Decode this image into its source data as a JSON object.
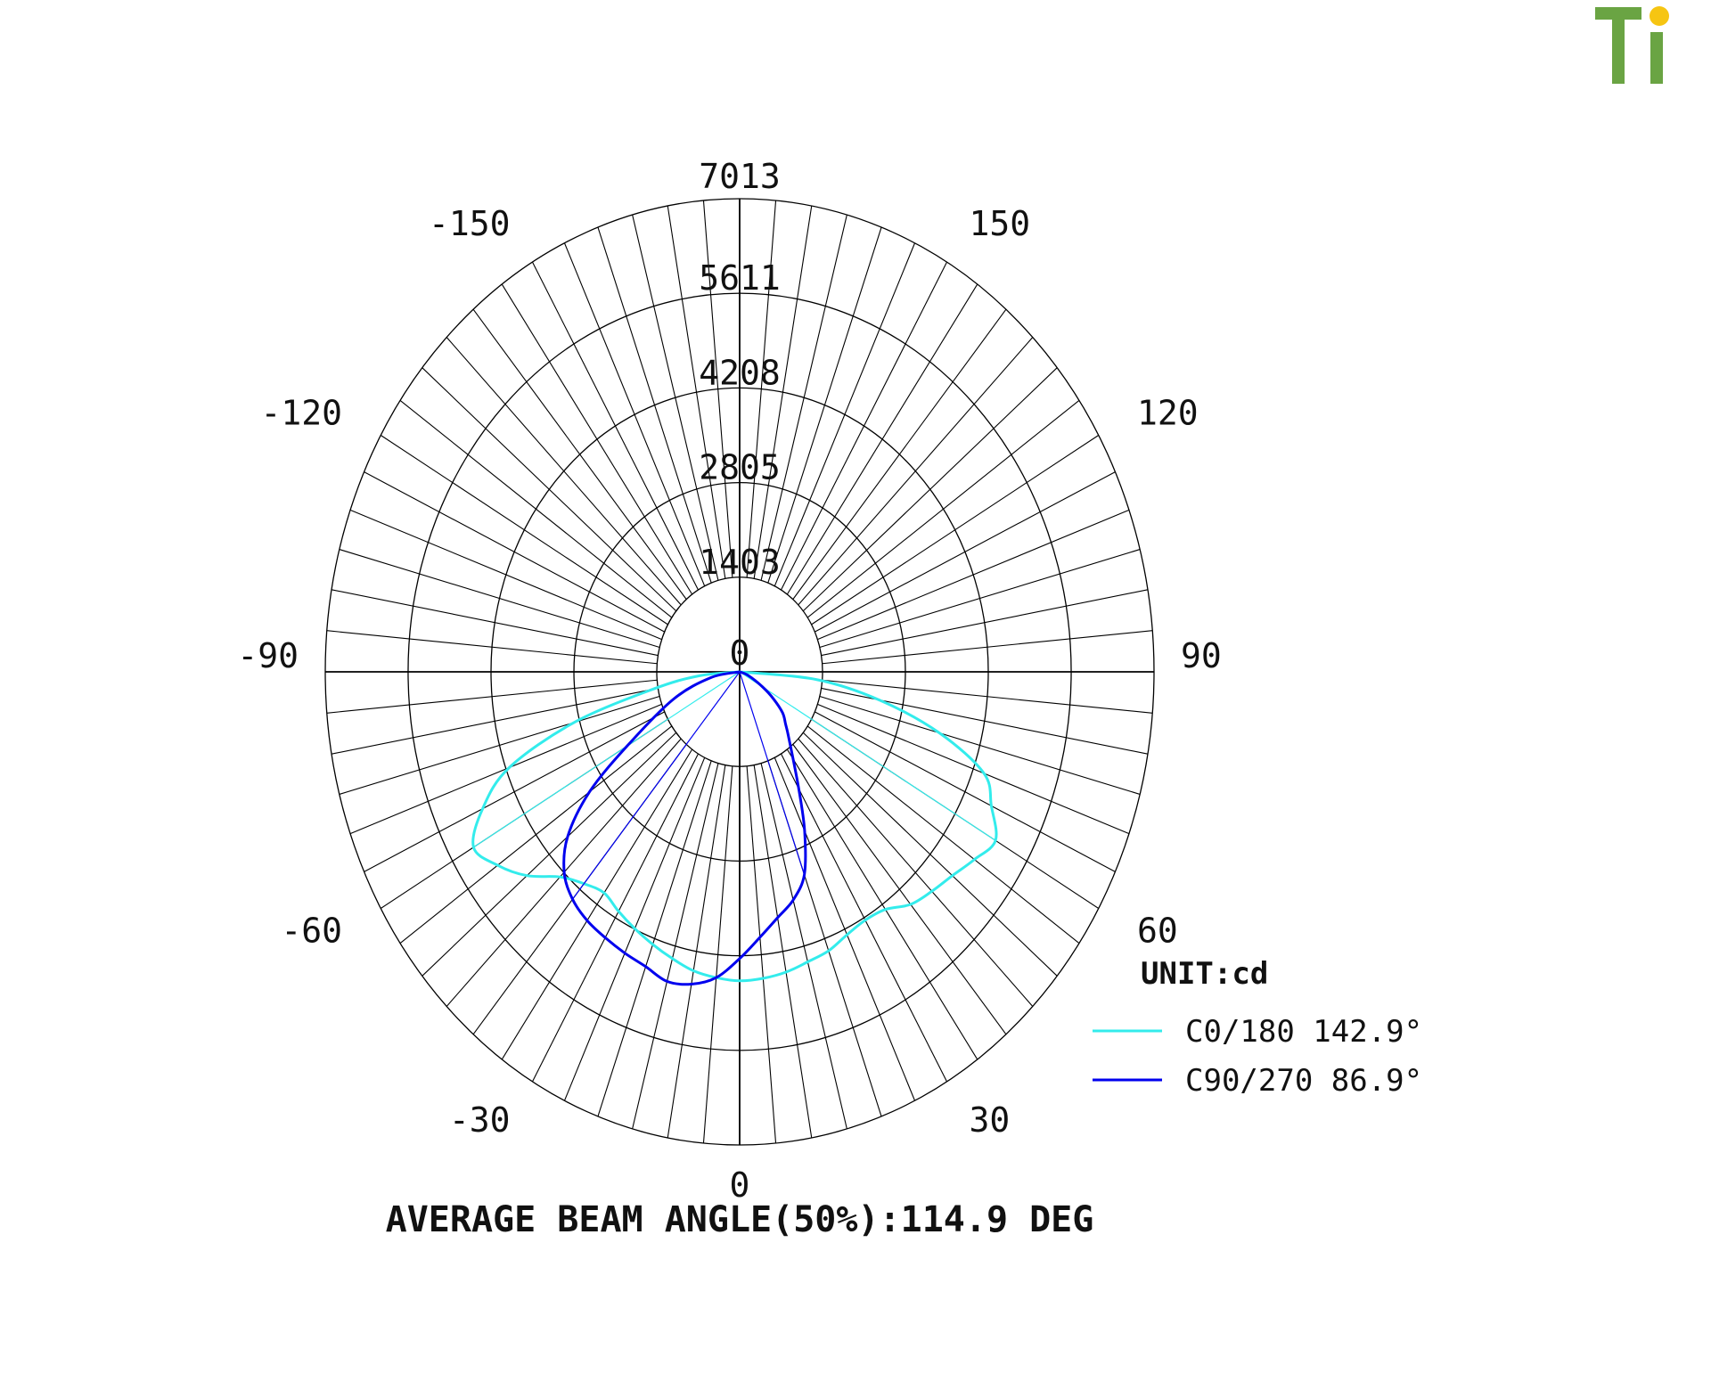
{
  "logo": {
    "text": "Ti",
    "green": "#6aa443",
    "dot": "#f6c512"
  },
  "chart_data": {
    "type": "polar",
    "unit": "UNIT:cd",
    "rings": [
      1403,
      2805,
      4208,
      5611,
      7013
    ],
    "rmax": 7013,
    "center_label": "0",
    "angle_labels": [
      {
        "angle": 180,
        "text": "7013"
      },
      {
        "angle": -150,
        "text": "-150"
      },
      {
        "angle": 150,
        "text": "150"
      },
      {
        "angle": -120,
        "text": "-120"
      },
      {
        "angle": 120,
        "text": "120"
      },
      {
        "angle": -90,
        "text": "-90"
      },
      {
        "angle": 90,
        "text": "90"
      },
      {
        "angle": -60,
        "text": "-60"
      },
      {
        "angle": 60,
        "text": "60"
      },
      {
        "angle": -30,
        "text": "-30"
      },
      {
        "angle": 30,
        "text": "30"
      },
      {
        "angle": 0,
        "text": "0"
      }
    ],
    "series": [
      {
        "name": "C0/180 142.9°",
        "color": "#33ecec",
        "angles": [
          -90,
          -85,
          -80,
          -75,
          -70,
          -65,
          -60,
          -55,
          -50,
          -45,
          -40,
          -35,
          -30,
          -25,
          -20,
          -15,
          -10,
          -5,
          0,
          5,
          10,
          15,
          20,
          25,
          30,
          35,
          40,
          45,
          50,
          55,
          60,
          65,
          70,
          75,
          80,
          85,
          90
        ],
        "values": [
          0,
          700,
          1500,
          2900,
          4150,
          4800,
          5200,
          5000,
          4700,
          4300,
          4100,
          4000,
          4100,
          4200,
          4300,
          4400,
          4500,
          4550,
          4580,
          4560,
          4520,
          4450,
          4400,
          4300,
          4250,
          4300,
          4500,
          4600,
          4700,
          4850,
          5000,
          4700,
          4400,
          3500,
          2400,
          1300,
          0
        ]
      },
      {
        "name": "C90/270 86.9°",
        "color": "#0000ee",
        "angles": [
          -90,
          -80,
          -70,
          -60,
          -55,
          -50,
          -45,
          -40,
          -35,
          -30,
          -25,
          -20,
          -15,
          -10,
          -5,
          0,
          5,
          10,
          15,
          20,
          25,
          30,
          40,
          45,
          50,
          55,
          60,
          70,
          90
        ],
        "values": [
          0,
          500,
          1200,
          2200,
          3100,
          3800,
          4200,
          4400,
          4500,
          4550,
          4600,
          4650,
          4750,
          4700,
          4550,
          4250,
          3950,
          3700,
          3500,
          3200,
          2600,
          2000,
          1300,
          1100,
          950,
          700,
          450,
          150,
          0
        ]
      }
    ],
    "footer": "AVERAGE BEAM ANGLE(50%):114.9 DEG"
  }
}
